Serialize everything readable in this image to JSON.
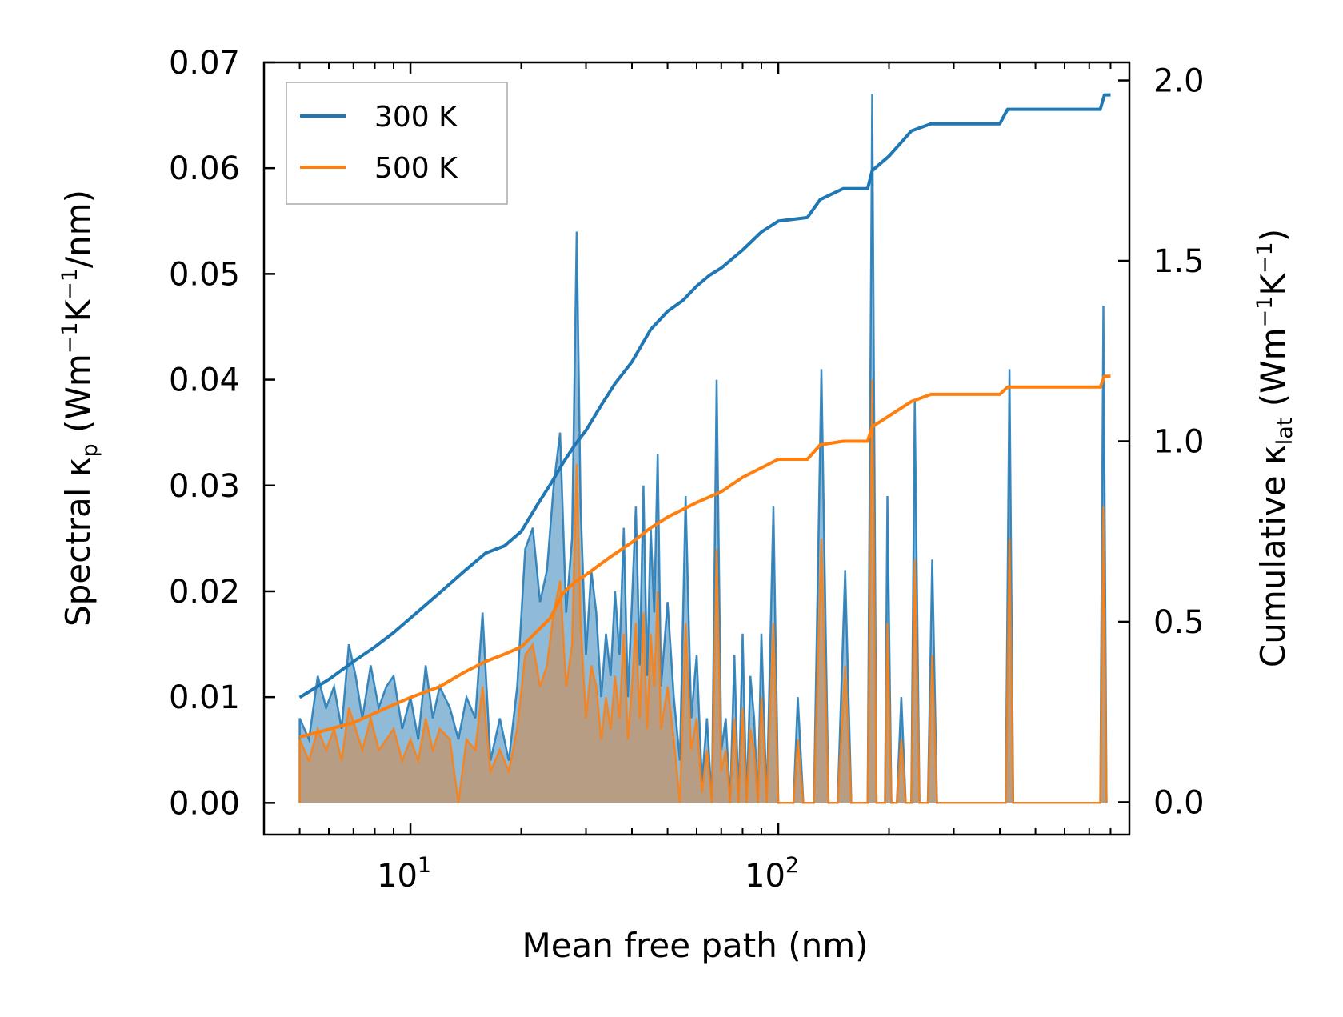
{
  "chart_data": {
    "type": "line",
    "x_scale": "log",
    "xlabel": "Mean free path (nm)",
    "xlim": [
      4.0,
      900
    ],
    "x_ticks": [
      {
        "value": 10,
        "base": "10",
        "exp": "1"
      },
      {
        "value": 100,
        "base": "10",
        "exp": "2"
      }
    ],
    "ylabel_left": {
      "main": "Spectral κ",
      "sub": "p",
      "units_open": " (Wm",
      "units_exp1": "−1",
      "units_mid": "K",
      "units_exp2": "−1",
      "units_close": "/nm)"
    },
    "ylim_left": [
      -0.003,
      0.07
    ],
    "y_ticks_left": [
      "0.00",
      "0.01",
      "0.02",
      "0.03",
      "0.04",
      "0.05",
      "0.06",
      "0.07"
    ],
    "ylabel_right": {
      "main": "Cumulative κ",
      "sub": "lat",
      "units_open": " (Wm",
      "units_exp1": "−1",
      "units_mid": "K",
      "units_exp2": "−1",
      "units_close": ")"
    },
    "ylim_right": [
      -0.09,
      2.05
    ],
    "y_ticks_right": [
      "0.0",
      "0.5",
      "1.0",
      "1.5",
      "2.0"
    ],
    "legend": {
      "position": "upper-left",
      "entries": [
        {
          "label": "300 K",
          "color": "#1f77b4"
        },
        {
          "label": "500 K",
          "color": "#ff7f0e"
        }
      ]
    },
    "spectral": [
      {
        "name": "300 K",
        "color": "#1f77b4",
        "fill": "#1f77b4",
        "points": [
          [
            5,
            0
          ],
          [
            5,
            0.008
          ],
          [
            5.3,
            0.006
          ],
          [
            5.6,
            0.012
          ],
          [
            5.9,
            0.009
          ],
          [
            6.2,
            0.011
          ],
          [
            6.5,
            0.007
          ],
          [
            6.8,
            0.015
          ],
          [
            7.1,
            0.012
          ],
          [
            7.4,
            0.008
          ],
          [
            7.8,
            0.013
          ],
          [
            8.2,
            0.009
          ],
          [
            8.6,
            0.011
          ],
          [
            9.0,
            0.012
          ],
          [
            9.5,
            0.007
          ],
          [
            10,
            0.01
          ],
          [
            10.5,
            0.006
          ],
          [
            11,
            0.013
          ],
          [
            11.5,
            0.008
          ],
          [
            12,
            0.011
          ],
          [
            12.8,
            0.009
          ],
          [
            13.5,
            0.006
          ],
          [
            14.2,
            0.01
          ],
          [
            15,
            0.008
          ],
          [
            15.7,
            0.018
          ],
          [
            16.5,
            0.004
          ],
          [
            17.5,
            0.008
          ],
          [
            18.5,
            0.004
          ],
          [
            19.5,
            0.011
          ],
          [
            20.5,
            0.024
          ],
          [
            21.5,
            0.026
          ],
          [
            22.5,
            0.019
          ],
          [
            23.5,
            0.022
          ],
          [
            24.5,
            0.03
          ],
          [
            25.5,
            0.035
          ],
          [
            26.5,
            0.018
          ],
          [
            27.5,
            0.025
          ],
          [
            28.3,
            0.054
          ],
          [
            29,
            0.028
          ],
          [
            30,
            0.014
          ],
          [
            31,
            0.022
          ],
          [
            32,
            0.018
          ],
          [
            33,
            0.01
          ],
          [
            34,
            0.016
          ],
          [
            35,
            0.012
          ],
          [
            36,
            0.02
          ],
          [
            37,
            0.014
          ],
          [
            38,
            0.026
          ],
          [
            39,
            0.01
          ],
          [
            40,
            0.019
          ],
          [
            41,
            0.028
          ],
          [
            42,
            0.013
          ],
          [
            43,
            0.03
          ],
          [
            44,
            0.012
          ],
          [
            45,
            0.026
          ],
          [
            46,
            0.018
          ],
          [
            47,
            0.033
          ],
          [
            48,
            0.011
          ],
          [
            50,
            0.019
          ],
          [
            52,
            0.01
          ],
          [
            54,
            0.004
          ],
          [
            56,
            0.029
          ],
          [
            58,
            0.008
          ],
          [
            60,
            0.014
          ],
          [
            62,
            0.002
          ],
          [
            64,
            0.008
          ],
          [
            66,
            0.0
          ],
          [
            68,
            0.04
          ],
          [
            70,
            0.005
          ],
          [
            72,
            0.008
          ],
          [
            74,
            0.0
          ],
          [
            76,
            0.014
          ],
          [
            78,
            0.0
          ],
          [
            80,
            0.016
          ],
          [
            82,
            0.0
          ],
          [
            84,
            0.012
          ],
          [
            86,
            0.008
          ],
          [
            88,
            0.0
          ],
          [
            90,
            0.016
          ],
          [
            93,
            0.0
          ],
          [
            97,
            0.028
          ],
          [
            100,
            0.0
          ],
          [
            110,
            0.0
          ],
          [
            113,
            0.01
          ],
          [
            117,
            0.0
          ],
          [
            125,
            0.0
          ],
          [
            131,
            0.041
          ],
          [
            137,
            0.0
          ],
          [
            145,
            0.0
          ],
          [
            152,
            0.022
          ],
          [
            158,
            0.0
          ],
          [
            175,
            0.0
          ],
          [
            180,
            0.067
          ],
          [
            185,
            0.0
          ],
          [
            195,
            0.0
          ],
          [
            198,
            0.029
          ],
          [
            203,
            0.0
          ],
          [
            210,
            0.0
          ],
          [
            216,
            0.01
          ],
          [
            222,
            0.0
          ],
          [
            230,
            0.0
          ],
          [
            235,
            0.038
          ],
          [
            242,
            0.0
          ],
          [
            255,
            0.0
          ],
          [
            262,
            0.023
          ],
          [
            270,
            0.0
          ],
          [
            415,
            0.0
          ],
          [
            425,
            0.041
          ],
          [
            435,
            0.0
          ],
          [
            750,
            0.0
          ],
          [
            765,
            0.047
          ],
          [
            780,
            0.0
          ]
        ]
      },
      {
        "name": "500 K",
        "color": "#ff7f0e",
        "fill": "#c0966d",
        "points": [
          [
            5,
            0
          ],
          [
            5,
            0.006
          ],
          [
            5.3,
            0.004
          ],
          [
            5.6,
            0.007
          ],
          [
            5.9,
            0.005
          ],
          [
            6.2,
            0.007
          ],
          [
            6.5,
            0.004
          ],
          [
            6.8,
            0.009
          ],
          [
            7.1,
            0.007
          ],
          [
            7.4,
            0.005
          ],
          [
            7.8,
            0.008
          ],
          [
            8.2,
            0.005
          ],
          [
            8.6,
            0.006
          ],
          [
            9.0,
            0.007
          ],
          [
            9.5,
            0.004
          ],
          [
            10,
            0.006
          ],
          [
            10.5,
            0.004
          ],
          [
            11,
            0.008
          ],
          [
            11.5,
            0.005
          ],
          [
            12,
            0.007
          ],
          [
            12.8,
            0.006
          ],
          [
            13.5,
            0.0
          ],
          [
            14.2,
            0.006
          ],
          [
            15,
            0.005
          ],
          [
            15.7,
            0.011
          ],
          [
            16.5,
            0.003
          ],
          [
            17.5,
            0.005
          ],
          [
            18.5,
            0.003
          ],
          [
            19.5,
            0.007
          ],
          [
            20.5,
            0.014
          ],
          [
            21.5,
            0.015
          ],
          [
            22.5,
            0.011
          ],
          [
            23.5,
            0.013
          ],
          [
            24.5,
            0.018
          ],
          [
            25.5,
            0.021
          ],
          [
            26.5,
            0.011
          ],
          [
            27.5,
            0.015
          ],
          [
            28.3,
            0.032
          ],
          [
            29,
            0.017
          ],
          [
            30,
            0.008
          ],
          [
            31,
            0.013
          ],
          [
            32,
            0.011
          ],
          [
            33,
            0.006
          ],
          [
            34,
            0.01
          ],
          [
            35,
            0.007
          ],
          [
            36,
            0.012
          ],
          [
            37,
            0.008
          ],
          [
            38,
            0.016
          ],
          [
            39,
            0.006
          ],
          [
            40,
            0.011
          ],
          [
            41,
            0.017
          ],
          [
            42,
            0.008
          ],
          [
            43,
            0.018
          ],
          [
            44,
            0.007
          ],
          [
            45,
            0.016
          ],
          [
            46,
            0.011
          ],
          [
            47,
            0.02
          ],
          [
            48,
            0.007
          ],
          [
            50,
            0.011
          ],
          [
            52,
            0.006
          ],
          [
            54,
            0.0
          ],
          [
            56,
            0.017
          ],
          [
            58,
            0.005
          ],
          [
            60,
            0.008
          ],
          [
            62,
            0.001
          ],
          [
            64,
            0.005
          ],
          [
            66,
            0.0
          ],
          [
            68,
            0.024
          ],
          [
            70,
            0.003
          ],
          [
            72,
            0.005
          ],
          [
            74,
            0.0
          ],
          [
            76,
            0.008
          ],
          [
            78,
            0.0
          ],
          [
            80,
            0.009
          ],
          [
            82,
            0.0
          ],
          [
            84,
            0.007
          ],
          [
            86,
            0.005
          ],
          [
            88,
            0.0
          ],
          [
            90,
            0.01
          ],
          [
            93,
            0.0
          ],
          [
            97,
            0.017
          ],
          [
            100,
            0.0
          ],
          [
            110,
            0.0
          ],
          [
            113,
            0.006
          ],
          [
            117,
            0.0
          ],
          [
            125,
            0.0
          ],
          [
            131,
            0.025
          ],
          [
            137,
            0.0
          ],
          [
            145,
            0.0
          ],
          [
            152,
            0.013
          ],
          [
            158,
            0.0
          ],
          [
            175,
            0.0
          ],
          [
            180,
            0.04
          ],
          [
            185,
            0.0
          ],
          [
            195,
            0.0
          ],
          [
            198,
            0.017
          ],
          [
            203,
            0.0
          ],
          [
            210,
            0.0
          ],
          [
            216,
            0.006
          ],
          [
            222,
            0.0
          ],
          [
            230,
            0.0
          ],
          [
            235,
            0.023
          ],
          [
            242,
            0.0
          ],
          [
            255,
            0.0
          ],
          [
            262,
            0.014
          ],
          [
            270,
            0.0
          ],
          [
            415,
            0.0
          ],
          [
            425,
            0.025
          ],
          [
            435,
            0.0
          ],
          [
            750,
            0.0
          ],
          [
            765,
            0.028
          ],
          [
            780,
            0.0
          ]
        ]
      }
    ],
    "cumulative": [
      {
        "name": "300 K",
        "color": "#1f77b4",
        "points": [
          [
            5,
            0.29
          ],
          [
            6,
            0.34
          ],
          [
            7,
            0.39
          ],
          [
            8,
            0.43
          ],
          [
            9,
            0.47
          ],
          [
            10,
            0.51
          ],
          [
            12,
            0.58
          ],
          [
            14,
            0.64
          ],
          [
            16,
            0.69
          ],
          [
            18,
            0.71
          ],
          [
            20,
            0.75
          ],
          [
            22,
            0.82
          ],
          [
            24,
            0.88
          ],
          [
            26,
            0.94
          ],
          [
            28,
            0.99
          ],
          [
            30,
            1.03
          ],
          [
            33,
            1.1
          ],
          [
            36,
            1.16
          ],
          [
            40,
            1.22
          ],
          [
            45,
            1.31
          ],
          [
            50,
            1.36
          ],
          [
            55,
            1.39
          ],
          [
            60,
            1.43
          ],
          [
            65,
            1.46
          ],
          [
            70,
            1.48
          ],
          [
            80,
            1.53
          ],
          [
            90,
            1.58
          ],
          [
            100,
            1.61
          ],
          [
            120,
            1.62
          ],
          [
            130,
            1.67
          ],
          [
            150,
            1.7
          ],
          [
            175,
            1.7
          ],
          [
            180,
            1.75
          ],
          [
            200,
            1.79
          ],
          [
            230,
            1.86
          ],
          [
            260,
            1.88
          ],
          [
            400,
            1.88
          ],
          [
            420,
            1.92
          ],
          [
            750,
            1.92
          ],
          [
            770,
            1.96
          ],
          [
            800,
            1.96
          ]
        ]
      },
      {
        "name": "500 K",
        "color": "#ff7f0e",
        "points": [
          [
            5,
            0.18
          ],
          [
            7,
            0.22
          ],
          [
            9,
            0.27
          ],
          [
            10,
            0.29
          ],
          [
            12,
            0.32
          ],
          [
            14,
            0.36
          ],
          [
            16,
            0.39
          ],
          [
            18,
            0.41
          ],
          [
            20,
            0.43
          ],
          [
            24,
            0.51
          ],
          [
            26,
            0.58
          ],
          [
            28,
            0.61
          ],
          [
            30,
            0.63
          ],
          [
            35,
            0.68
          ],
          [
            40,
            0.72
          ],
          [
            45,
            0.76
          ],
          [
            50,
            0.79
          ],
          [
            60,
            0.83
          ],
          [
            70,
            0.86
          ],
          [
            80,
            0.9
          ],
          [
            100,
            0.95
          ],
          [
            120,
            0.95
          ],
          [
            130,
            0.99
          ],
          [
            150,
            1.0
          ],
          [
            175,
            1.0
          ],
          [
            180,
            1.04
          ],
          [
            200,
            1.07
          ],
          [
            230,
            1.11
          ],
          [
            260,
            1.13
          ],
          [
            400,
            1.13
          ],
          [
            420,
            1.15
          ],
          [
            750,
            1.15
          ],
          [
            770,
            1.18
          ],
          [
            800,
            1.18
          ]
        ]
      }
    ]
  }
}
